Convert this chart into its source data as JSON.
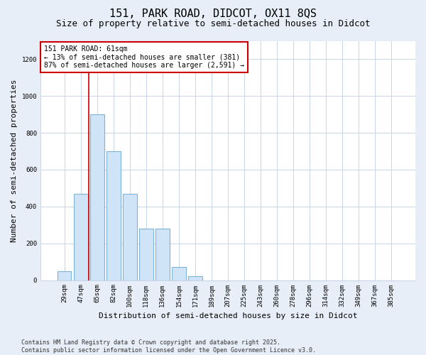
{
  "title_line1": "151, PARK ROAD, DIDCOT, OX11 8QS",
  "title_line2": "Size of property relative to semi-detached houses in Didcot",
  "xlabel": "Distribution of semi-detached houses by size in Didcot",
  "ylabel": "Number of semi-detached properties",
  "categories": [
    "29sqm",
    "47sqm",
    "65sqm",
    "82sqm",
    "100sqm",
    "118sqm",
    "136sqm",
    "154sqm",
    "171sqm",
    "189sqm",
    "207sqm",
    "225sqm",
    "243sqm",
    "260sqm",
    "278sqm",
    "296sqm",
    "314sqm",
    "332sqm",
    "349sqm",
    "367sqm",
    "385sqm"
  ],
  "values": [
    50,
    470,
    900,
    700,
    470,
    280,
    280,
    70,
    20,
    0,
    0,
    0,
    0,
    0,
    0,
    0,
    0,
    0,
    0,
    0,
    0
  ],
  "bar_color": "#d0e4f7",
  "bar_edge_color": "#7eb3d8",
  "vline_color": "#cc0000",
  "ylim": [
    0,
    1300
  ],
  "yticks": [
    0,
    200,
    400,
    600,
    800,
    1000,
    1200
  ],
  "annotation_text": "151 PARK ROAD: 61sqm\n← 13% of semi-detached houses are smaller (381)\n87% of semi-detached houses are larger (2,591) →",
  "annotation_box_color": "#ffffff",
  "annotation_box_edge": "#cc0000",
  "footer_text": "Contains HM Land Registry data © Crown copyright and database right 2025.\nContains public sector information licensed under the Open Government Licence v3.0.",
  "figure_bg_color": "#e8eef7",
  "plot_bg_color": "#ffffff",
  "grid_color": "#c8d4e8",
  "title_fontsize": 11,
  "subtitle_fontsize": 9,
  "axis_label_fontsize": 8,
  "tick_fontsize": 6.5,
  "footer_fontsize": 6,
  "annotation_fontsize": 7
}
